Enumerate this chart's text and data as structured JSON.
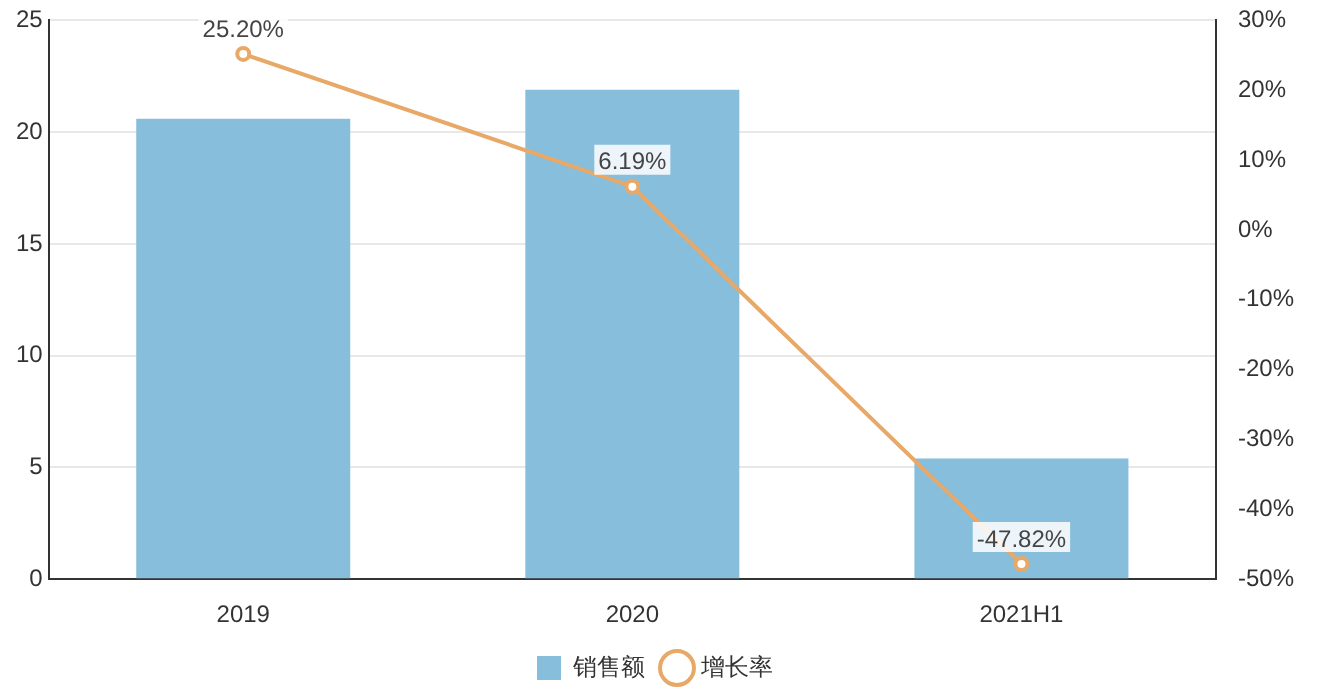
{
  "chart_data": {
    "type": "bar",
    "categories": [
      "2019",
      "2020",
      "2021H1"
    ],
    "series": [
      {
        "name": "销售额",
        "color": "#86bedc",
        "values": [
          20.6,
          21.9,
          5.4
        ]
      },
      {
        "name": "增长率",
        "type": "line",
        "axis": "y2",
        "color": "#e8a868",
        "marker": "circle",
        "values": [
          25.2,
          6.19,
          -47.82
        ],
        "value_labels": [
          "25.20%",
          "6.19%",
          "-47.82%"
        ]
      }
    ],
    "ylim": [
      0,
      25
    ],
    "yticks": [
      0,
      5,
      10,
      15,
      20,
      25
    ],
    "y2lim": [
      -50,
      30
    ],
    "y2ticks": [
      {
        "value": -50,
        "label": "-50%"
      },
      {
        "value": -40,
        "label": "-40%"
      },
      {
        "value": -30,
        "label": "-30%"
      },
      {
        "value": -20,
        "label": "-20%"
      },
      {
        "value": -10,
        "label": "-10%"
      },
      {
        "value": 0,
        "label": "0%"
      },
      {
        "value": 10,
        "label": "10%"
      },
      {
        "value": 20,
        "label": "20%"
      },
      {
        "value": 30,
        "label": "30%"
      }
    ],
    "grid": "y",
    "legend": "bottom"
  }
}
